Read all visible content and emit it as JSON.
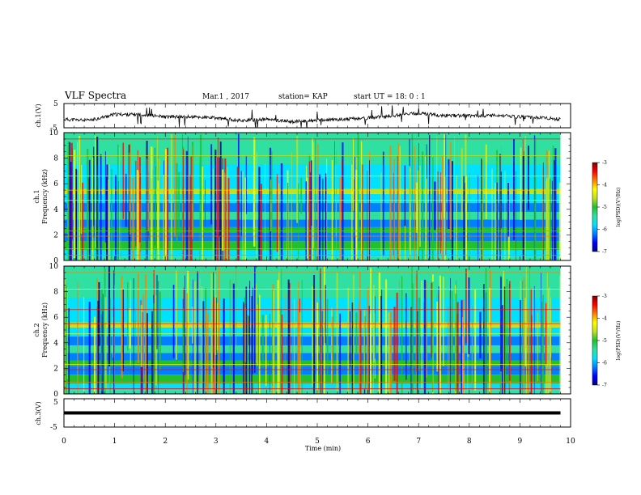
{
  "header": {
    "title": "VLF Spectra",
    "date": "Mar.1 , 2017",
    "station": "station= KAP",
    "start_time": "start UT = 18: 0 : 1"
  },
  "colors": {
    "colormap": [
      "#000080",
      "#0000ff",
      "#0080ff",
      "#00e0ff",
      "#30e0a0",
      "#20c030",
      "#c0e020",
      "#ffff00",
      "#ff8000",
      "#ff0000",
      "#800000"
    ]
  },
  "chart_data": [
    {
      "type": "line",
      "panel": "ch1_waveform",
      "ylabel": "ch.1(V)",
      "ylim": [
        -5,
        5
      ],
      "yticks": [
        "5",
        "-5"
      ],
      "x": [
        0,
        0.5,
        1,
        1.5,
        2,
        2.5,
        3,
        3.5,
        4,
        4.5,
        5,
        5.5,
        6,
        6.5,
        7,
        7.5,
        8,
        8.5,
        9,
        9.5,
        9.8
      ],
      "values": [
        -1.5,
        -2,
        0.5,
        0.5,
        -0.5,
        -0.5,
        -1,
        -2,
        -1.5,
        -2.5,
        -2,
        -1.5,
        -1,
        0,
        1,
        0,
        0,
        0,
        -0.5,
        -1,
        -1.5
      ]
    },
    {
      "type": "heatmap",
      "panel": "ch1_spectrogram",
      "ylabel_line1": "ch.1",
      "ylabel_line2": "Frequency (kHz)",
      "ylim": [
        0,
        10
      ],
      "yticks": [
        "0",
        "2",
        "4",
        "6",
        "8",
        "10"
      ],
      "colorbar_label": "log(PSD)(V²/Hz)",
      "colorbar_range": [
        -7,
        -3
      ],
      "colorbar_ticks": [
        "-3",
        "-4",
        "-5",
        "-6",
        "-7"
      ]
    },
    {
      "type": "heatmap",
      "panel": "ch2_spectrogram",
      "ylabel_line1": "ch.2",
      "ylabel_line2": "Frequency (kHz)",
      "ylim": [
        0,
        10
      ],
      "yticks": [
        "0",
        "2",
        "4",
        "6",
        "8",
        "10"
      ],
      "colorbar_label": "log(PSD)(V²/Hz)",
      "colorbar_range": [
        -7,
        -3
      ],
      "colorbar_ticks": [
        "-3",
        "-4",
        "-5",
        "-6",
        "-7"
      ]
    },
    {
      "type": "line",
      "panel": "ch3_waveform",
      "ylabel": "ch.3(V)",
      "ylim": [
        -5,
        5
      ],
      "yticks": [
        "5",
        "-5"
      ],
      "x": [
        0,
        9.8
      ],
      "values": [
        0,
        0
      ]
    }
  ],
  "xaxis": {
    "label": "Time (min)",
    "ticks": [
      "0",
      "1",
      "2",
      "3",
      "4",
      "5",
      "6",
      "7",
      "8",
      "9",
      "10"
    ],
    "xlim": [
      0,
      10
    ]
  }
}
